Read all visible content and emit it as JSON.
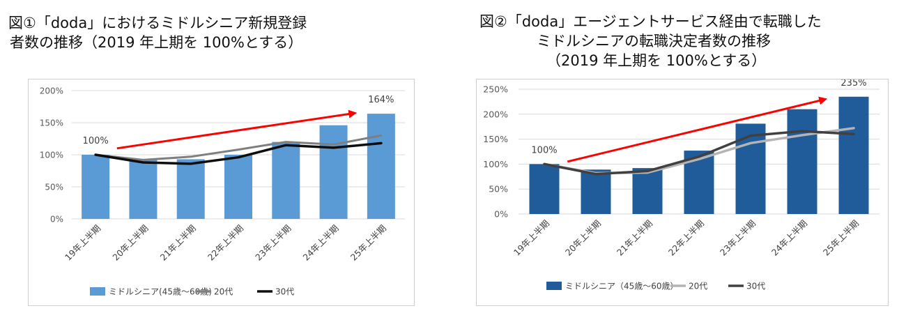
{
  "figures": [
    {
      "id": "left",
      "title_lines": [
        "図①「doda」におけるミドルシニア新規登録",
        "者数の推移（2019 年上期を 100%とする）"
      ],
      "colors": {
        "bar": "#5b9bd5",
        "line_20s": "#7f7f7f",
        "line_30s": "#0d0d0d",
        "arrow": "#ff0000"
      }
    },
    {
      "id": "right",
      "title_lines": [
        "図②「doda」エージェントサービス経由で転職した",
        "ミドルシニアの転職決定者数の推移",
        "（2019 年上期を 100%とする）"
      ],
      "colors": {
        "bar": "#1f5c99",
        "line_20s": "#b4b4b4",
        "line_30s": "#404040",
        "arrow": "#ff0000"
      }
    }
  ],
  "chart_data": [
    {
      "type": "bar",
      "categories": [
        "19年上半期",
        "20年上半期",
        "21年上半期",
        "22年上半期",
        "23年上半期",
        "24年上半期",
        "25年上半期"
      ],
      "series": [
        {
          "name": "ミドルシニア(45歳～60歳)",
          "kind": "bar",
          "values": [
            100,
            92,
            93,
            100,
            120,
            146,
            164
          ]
        },
        {
          "name": "20代",
          "kind": "line",
          "values": [
            100,
            92,
            97,
            108,
            120,
            116,
            130
          ]
        },
        {
          "name": "30代",
          "kind": "line",
          "values": [
            100,
            88,
            86,
            96,
            115,
            111,
            118
          ]
        }
      ],
      "yticks": [
        "200%",
        "150%",
        "100%",
        "50%",
        "0%"
      ],
      "ylim": [
        0,
        200
      ],
      "data_labels": {
        "first": "100%",
        "last": "164%"
      },
      "grid": true,
      "legend_position": "bottom",
      "trend_arrow": {
        "from": [
          0.95,
          110
        ],
        "to": [
          5.95,
          165
        ]
      }
    },
    {
      "type": "bar",
      "categories": [
        "19年上半期",
        "20年上半期",
        "21年上半期",
        "22年上半期",
        "23年上半期",
        "24年上半期",
        "25年上半期"
      ],
      "series": [
        {
          "name": "ミドルシニア（45歳～60歳）",
          "kind": "bar",
          "values": [
            100,
            89,
            92,
            127,
            181,
            210,
            235
          ]
        },
        {
          "name": "20代",
          "kind": "line",
          "values": [
            100,
            82,
            83,
            110,
            142,
            158,
            172
          ]
        },
        {
          "name": "30代",
          "kind": "line",
          "values": [
            100,
            80,
            86,
            115,
            157,
            166,
            160
          ]
        }
      ],
      "yticks": [
        "250%",
        "200%",
        "150%",
        "100%",
        "50%",
        "0%"
      ],
      "ylim": [
        0,
        250
      ],
      "data_labels": {
        "first": "100%",
        "last": "235%"
      },
      "grid": true,
      "legend_position": "bottom",
      "trend_arrow": {
        "from": [
          0.95,
          105
        ],
        "to": [
          5.95,
          230
        ]
      }
    }
  ]
}
